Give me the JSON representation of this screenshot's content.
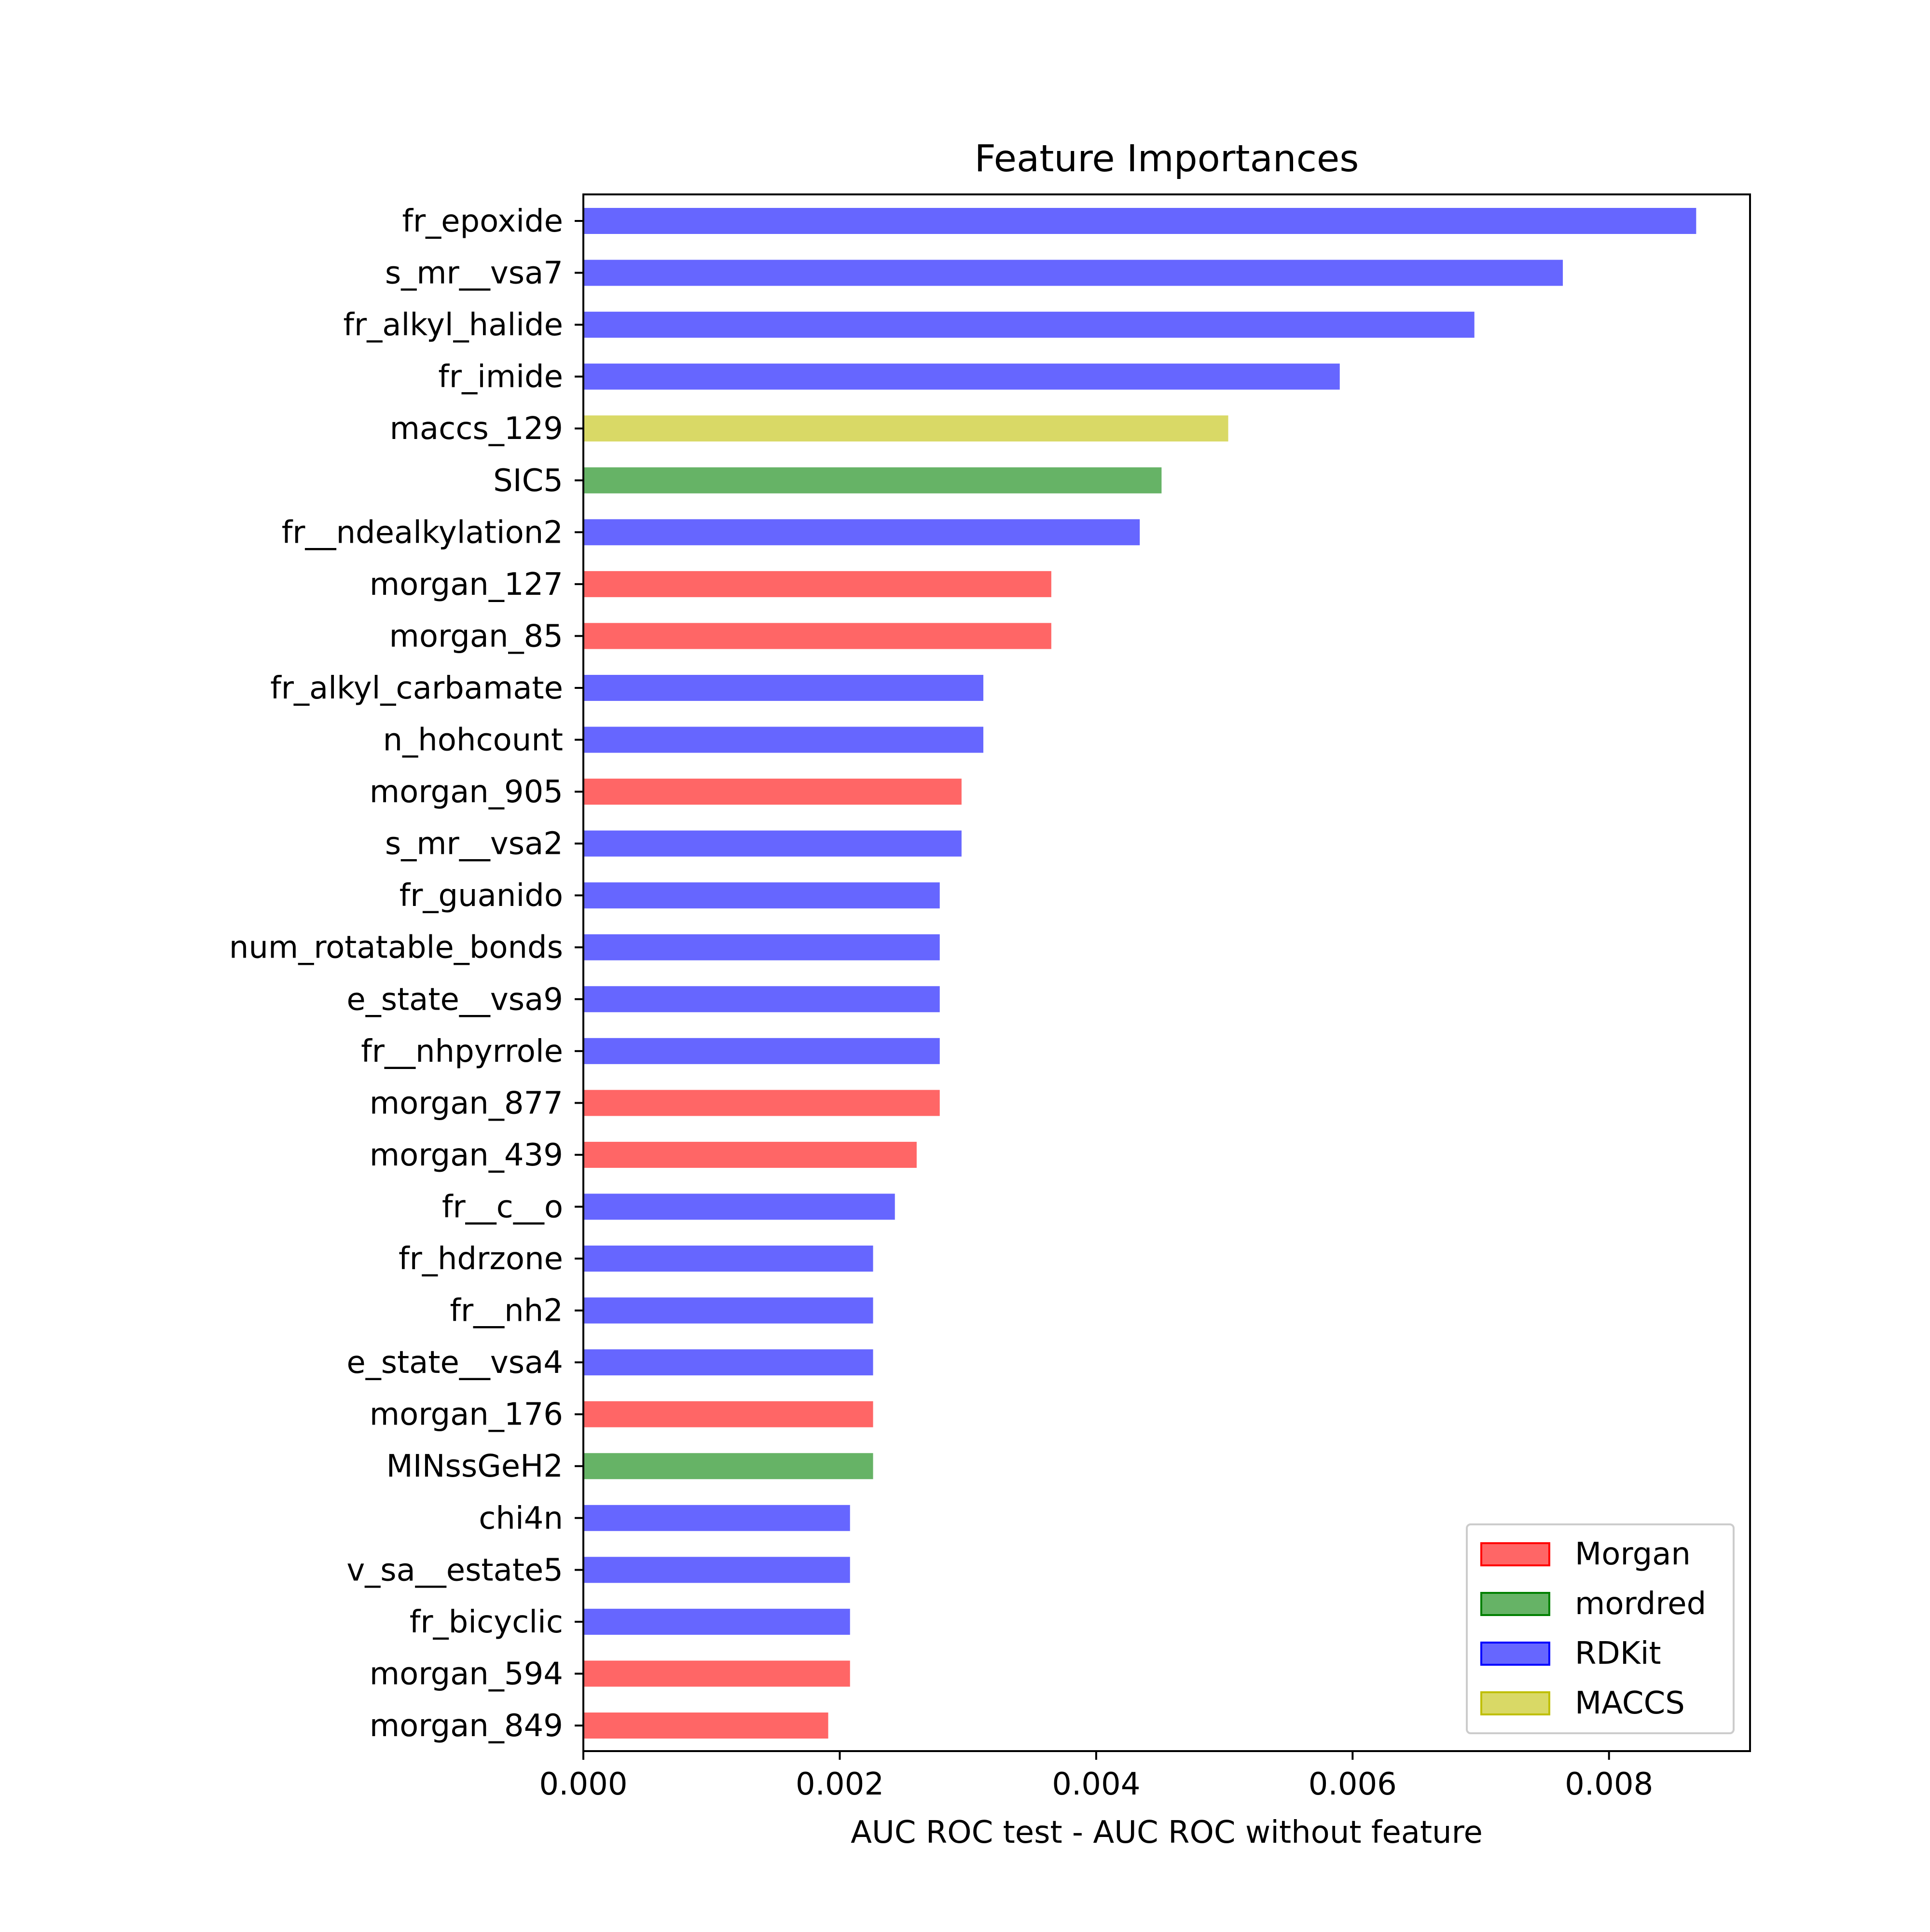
{
  "colors": {
    "Morgan": "#ff6666",
    "mordred": "#66b366",
    "RDKit": "#6666ff",
    "MACCS": "#d9d966",
    "Morgan_edge": "#ff0000",
    "mordred_edge": "#008000",
    "RDKit_edge": "#0000ff",
    "MACCS_edge": "#bfbf00"
  },
  "chart_data": {
    "type": "bar",
    "orientation": "horizontal",
    "title": "Feature Importances",
    "xlabel": "AUC ROC test - AUC ROC without feature",
    "ylabel": "",
    "xlim": [
      0,
      0.0091
    ],
    "xticks": [
      0.0,
      0.002,
      0.004,
      0.006,
      0.008
    ],
    "xtick_labels": [
      "0.000",
      "0.002",
      "0.004",
      "0.006",
      "0.008"
    ],
    "grid": false,
    "legend_placement": "lower-right",
    "legend": [
      "Morgan",
      "mordred",
      "RDKit",
      "MACCS"
    ],
    "bars": [
      {
        "label": "fr_epoxide",
        "value": 0.00868,
        "group": "RDKit"
      },
      {
        "label": "s_mr__vsa7",
        "value": 0.00764,
        "group": "RDKit"
      },
      {
        "label": "fr_alkyl_halide",
        "value": 0.00695,
        "group": "RDKit"
      },
      {
        "label": "fr_imide",
        "value": 0.0059,
        "group": "RDKit"
      },
      {
        "label": "maccs_129",
        "value": 0.00503,
        "group": "MACCS"
      },
      {
        "label": "SIC5",
        "value": 0.00451,
        "group": "mordred"
      },
      {
        "label": "fr__ndealkylation2",
        "value": 0.00434,
        "group": "RDKit"
      },
      {
        "label": "morgan_127",
        "value": 0.00365,
        "group": "Morgan"
      },
      {
        "label": "morgan_85",
        "value": 0.00365,
        "group": "Morgan"
      },
      {
        "label": "fr_alkyl_carbamate",
        "value": 0.00312,
        "group": "RDKit"
      },
      {
        "label": "n_hohcount",
        "value": 0.00312,
        "group": "RDKit"
      },
      {
        "label": "morgan_905",
        "value": 0.00295,
        "group": "Morgan"
      },
      {
        "label": "s_mr__vsa2",
        "value": 0.00295,
        "group": "RDKit"
      },
      {
        "label": "fr_guanido",
        "value": 0.00278,
        "group": "RDKit"
      },
      {
        "label": "num_rotatable_bonds",
        "value": 0.00278,
        "group": "RDKit"
      },
      {
        "label": "e_state__vsa9",
        "value": 0.00278,
        "group": "RDKit"
      },
      {
        "label": "fr__nhpyrrole",
        "value": 0.00278,
        "group": "RDKit"
      },
      {
        "label": "morgan_877",
        "value": 0.00278,
        "group": "Morgan"
      },
      {
        "label": "morgan_439",
        "value": 0.0026,
        "group": "Morgan"
      },
      {
        "label": "fr__c__o",
        "value": 0.00243,
        "group": "RDKit"
      },
      {
        "label": "fr_hdrzone",
        "value": 0.00226,
        "group": "RDKit"
      },
      {
        "label": "fr__nh2",
        "value": 0.00226,
        "group": "RDKit"
      },
      {
        "label": "e_state__vsa4",
        "value": 0.00226,
        "group": "RDKit"
      },
      {
        "label": "morgan_176",
        "value": 0.00226,
        "group": "Morgan"
      },
      {
        "label": "MINssGeH2",
        "value": 0.00226,
        "group": "mordred"
      },
      {
        "label": "chi4n",
        "value": 0.00208,
        "group": "RDKit"
      },
      {
        "label": "v_sa__estate5",
        "value": 0.00208,
        "group": "RDKit"
      },
      {
        "label": "fr_bicyclic",
        "value": 0.00208,
        "group": "RDKit"
      },
      {
        "label": "morgan_594",
        "value": 0.00208,
        "group": "Morgan"
      },
      {
        "label": "morgan_849",
        "value": 0.00191,
        "group": "Morgan"
      }
    ]
  }
}
